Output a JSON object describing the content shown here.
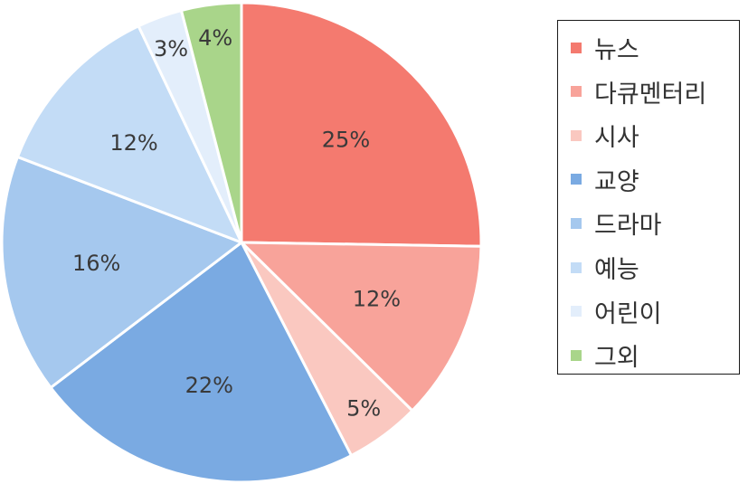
{
  "chart_data": {
    "type": "pie",
    "categories": [
      "뉴스",
      "다큐멘터리",
      "시사",
      "교양",
      "드라마",
      "예능",
      "어린이",
      "그외"
    ],
    "values": [
      25,
      12,
      5,
      22,
      16,
      12,
      3,
      4
    ],
    "data_labels": [
      "25%",
      "12%",
      "5%",
      "22%",
      "16%",
      "12%",
      "3%",
      "4%"
    ],
    "colors": [
      "#f47a6f",
      "#f8a39a",
      "#fac8c0",
      "#7aaae2",
      "#a5c8ee",
      "#c3dcf6",
      "#e3eefb",
      "#a9d58a"
    ],
    "start": "12 o'clock",
    "direction": "clockwise",
    "legend": {
      "position": "right"
    }
  }
}
